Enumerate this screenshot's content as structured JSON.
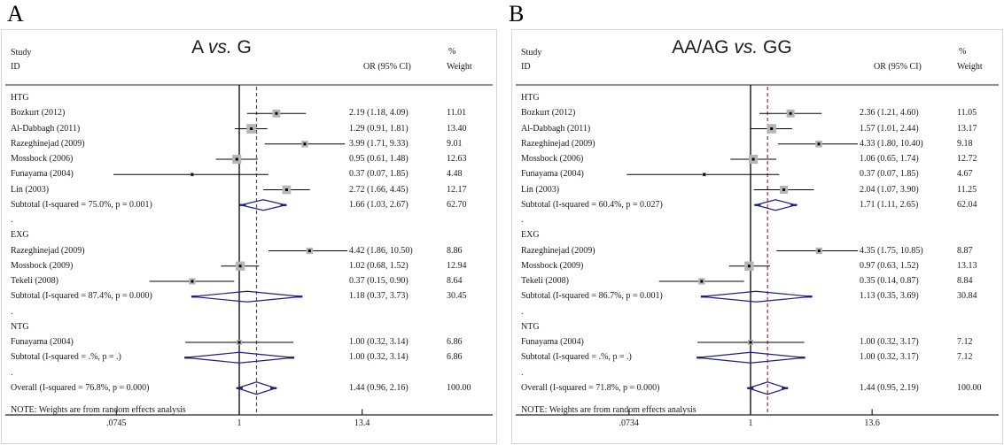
{
  "colors": {
    "marker_fill": "#b5b5b5",
    "marker_center": "#000000",
    "diamond_stroke": "#20207e",
    "null_line": "#000000",
    "overall_dashed_line": "#90353b",
    "rule": "#222222",
    "panel_border": "#d5d5d5",
    "text": "#1a1a1a"
  },
  "chart_data": [
    {
      "type": "forest",
      "panel_letter": "A",
      "title": {
        "left": "A",
        "vs": "vs.",
        "right": "G"
      },
      "columns": {
        "study": "Study",
        "id": "ID",
        "or": "OR (95% CI)",
        "pct": "%",
        "weight": "Weight"
      },
      "note": "NOTE: Weights are from random effects analysis",
      "x_axis": {
        "scale": "log",
        "ticks": [
          {
            "label": ".0745",
            "value": 0.0745
          },
          {
            "label": "1",
            "value": 1
          },
          {
            "label": "13.4",
            "value": 13.4
          }
        ]
      },
      "null_line": 1,
      "overall_line_at": 1.44,
      "groups": [
        {
          "label": "HTG",
          "studies": [
            {
              "id": "Bozkurt  (2012)",
              "or": 2.19,
              "lo": 1.18,
              "hi": 4.09,
              "or_text": "2.19 (1.18, 4.09)",
              "weight": "11.01"
            },
            {
              "id": "Al-Dabbagh (2011)",
              "or": 1.29,
              "lo": 0.91,
              "hi": 1.81,
              "or_text": "1.29 (0.91, 1.81)",
              "weight": "13.40"
            },
            {
              "id": "Razeghinejad (2009)",
              "or": 3.99,
              "lo": 1.71,
              "hi": 9.33,
              "or_text": "3.99 (1.71, 9.33)",
              "weight": "9.01"
            },
            {
              "id": "Mossbock (2006)",
              "or": 0.95,
              "lo": 0.61,
              "hi": 1.48,
              "or_text": "0.95 (0.61, 1.48)",
              "weight": "12.63"
            },
            {
              "id": "Funayama (2004)",
              "or": 0.37,
              "lo": 0.07,
              "hi": 1.85,
              "or_text": "0.37 (0.07, 1.85)",
              "weight": "4.48"
            },
            {
              "id": "Lin (2003)",
              "or": 2.72,
              "lo": 1.66,
              "hi": 4.45,
              "or_text": "2.72 (1.66, 4.45)",
              "weight": "12.17"
            }
          ],
          "subtotal": {
            "id": "Subtotal  (I-squared = 75.0%, p = 0.001)",
            "or": 1.66,
            "lo": 1.03,
            "hi": 2.67,
            "or_text": "1.66 (1.03, 2.67)",
            "weight": "62.70"
          }
        },
        {
          "label": "EXG",
          "studies": [
            {
              "id": "Razeghinejad (2009)",
              "or": 4.42,
              "lo": 1.86,
              "hi": 10.5,
              "or_text": "4.42 (1.86, 10.50)",
              "weight": "8.86"
            },
            {
              "id": "Mossbock  (2009)",
              "or": 1.02,
              "lo": 0.68,
              "hi": 1.52,
              "or_text": "1.02 (0.68, 1.52)",
              "weight": "12.94"
            },
            {
              "id": "Tekeli (2008)",
              "or": 0.37,
              "lo": 0.15,
              "hi": 0.9,
              "or_text": "0.37 (0.15, 0.90)",
              "weight": "8.64"
            }
          ],
          "subtotal": {
            "id": "Subtotal  (I-squared = 87.4%, p = 0.000)",
            "or": 1.18,
            "lo": 0.37,
            "hi": 3.73,
            "or_text": "1.18 (0.37, 3.73)",
            "weight": "30.45"
          }
        },
        {
          "label": "NTG",
          "studies": [
            {
              "id": "Funayama (2004)",
              "or": 1.0,
              "lo": 0.32,
              "hi": 3.14,
              "or_text": "1.00 (0.32, 3.14)",
              "weight": "6.86"
            }
          ],
          "subtotal": {
            "id": "Subtotal  (I-squared = .%, p = .)",
            "or": 1.0,
            "lo": 0.32,
            "hi": 3.14,
            "or_text": "1.00 (0.32, 3.14)",
            "weight": "6.86"
          }
        }
      ],
      "overall": {
        "id": "Overall  (I-squared = 76.8%, p = 0.000)",
        "or": 1.44,
        "lo": 0.96,
        "hi": 2.16,
        "or_text": "1.44 (0.96, 2.16)",
        "weight": "100.00"
      }
    },
    {
      "type": "forest",
      "panel_letter": "B",
      "title": {
        "left": "AA/AG",
        "vs": "vs.",
        "right": "GG"
      },
      "columns": {
        "study": "Study",
        "id": "ID",
        "or": "OR (95% CI)",
        "pct": "%",
        "weight": "Weight"
      },
      "note": "NOTE: Weights are from random effects analysis",
      "x_axis": {
        "scale": "log",
        "ticks": [
          {
            "label": ".0734",
            "value": 0.0734
          },
          {
            "label": "1",
            "value": 1
          },
          {
            "label": "13.6",
            "value": 13.6
          }
        ]
      },
      "null_line": 1,
      "overall_line_at": 1.44,
      "groups": [
        {
          "label": "HTG",
          "studies": [
            {
              "id": "Bozkurt  (2012)",
              "or": 2.36,
              "lo": 1.21,
              "hi": 4.6,
              "or_text": "2.36 (1.21, 4.60)",
              "weight": "11.05"
            },
            {
              "id": "Al-Dabbagh (2011)",
              "or": 1.57,
              "lo": 1.01,
              "hi": 2.44,
              "or_text": "1.57 (1.01, 2.44)",
              "weight": "13.17"
            },
            {
              "id": "Razeghinejad (2009)",
              "or": 4.33,
              "lo": 1.8,
              "hi": 10.4,
              "or_text": "4.33 (1.80, 10.40)",
              "weight": "9.18"
            },
            {
              "id": "Mossbock (2006)",
              "or": 1.06,
              "lo": 0.65,
              "hi": 1.74,
              "or_text": "1.06 (0.65, 1.74)",
              "weight": "12.72"
            },
            {
              "id": "Funayama (2004)",
              "or": 0.37,
              "lo": 0.07,
              "hi": 1.85,
              "or_text": "0.37 (0.07, 1.85)",
              "weight": "4.67"
            },
            {
              "id": "Lin (2003)",
              "or": 2.04,
              "lo": 1.07,
              "hi": 3.9,
              "or_text": "2.04 (1.07, 3.90)",
              "weight": "11.25"
            }
          ],
          "subtotal": {
            "id": "Subtotal  (I-squared = 60.4%, p = 0.027)",
            "or": 1.71,
            "lo": 1.11,
            "hi": 2.65,
            "or_text": "1.71 (1.11, 2.65)",
            "weight": "62.04"
          }
        },
        {
          "label": "EXG",
          "studies": [
            {
              "id": "Razeghinejad (2009)",
              "or": 4.35,
              "lo": 1.75,
              "hi": 10.85,
              "or_text": "4.35 (1.75, 10.85)",
              "weight": "8.87"
            },
            {
              "id": "Mossbock  (2009)",
              "or": 0.97,
              "lo": 0.63,
              "hi": 1.52,
              "or_text": "0.97 (0.63, 1.52)",
              "weight": "13.13"
            },
            {
              "id": "Tekeli (2008)",
              "or": 0.35,
              "lo": 0.14,
              "hi": 0.87,
              "or_text": "0.35 (0.14, 0.87)",
              "weight": "8.84"
            }
          ],
          "subtotal": {
            "id": "Subtotal  (I-squared = 86.7%, p = 0.001)",
            "or": 1.13,
            "lo": 0.35,
            "hi": 3.69,
            "or_text": "1.13 (0.35, 3.69)",
            "weight": "30.84"
          }
        },
        {
          "label": "NTG",
          "studies": [
            {
              "id": "Funayama (2004)",
              "or": 1.0,
              "lo": 0.32,
              "hi": 3.17,
              "or_text": "1.00 (0.32, 3.17)",
              "weight": "7.12"
            }
          ],
          "subtotal": {
            "id": "Subtotal  (I-squared = .%, p = .)",
            "or": 1.0,
            "lo": 0.32,
            "hi": 3.17,
            "or_text": "1.00 (0.32, 3.17)",
            "weight": "7.12"
          }
        }
      ],
      "overall": {
        "id": "Overall  (I-squared = 71.8%, p = 0.000)",
        "or": 1.44,
        "lo": 0.95,
        "hi": 2.19,
        "or_text": "1.44 (0.95, 2.19)",
        "weight": "100.00"
      }
    }
  ]
}
